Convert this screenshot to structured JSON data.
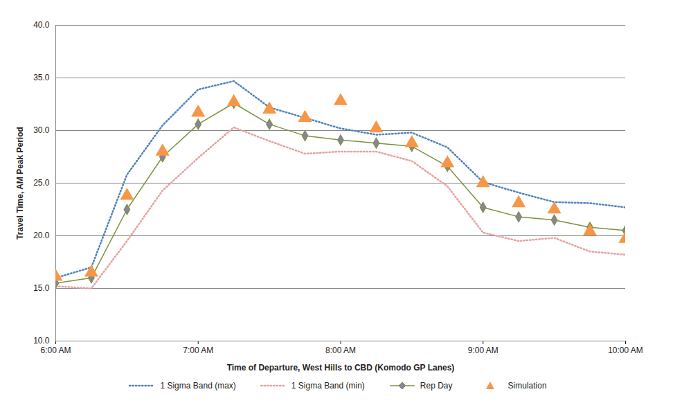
{
  "chart_data": {
    "type": "line",
    "x_label": "Time of Departure, West Hills to CBD (Komodo GP Lanes)",
    "y_label": "Travel Time, AM Peak Period",
    "x": [
      6,
      6.25,
      6.5,
      6.75,
      7,
      7.25,
      7.5,
      7.75,
      8,
      8.25,
      8.5,
      8.75,
      9,
      9.25,
      9.5,
      9.75,
      10
    ],
    "xlim": [
      6,
      10
    ],
    "xticks": [
      {
        "value": 6,
        "label": "6:00 AM"
      },
      {
        "value": 7,
        "label": "7:00 AM"
      },
      {
        "value": 8,
        "label": "8:00 AM"
      },
      {
        "value": 9,
        "label": "9:00 AM"
      },
      {
        "value": 10,
        "label": "10:00 AM"
      }
    ],
    "ylim": [
      10,
      40
    ],
    "yticks": [
      {
        "value": 10,
        "label": "10.0"
      },
      {
        "value": 15,
        "label": "15.0"
      },
      {
        "value": 20,
        "label": "20.0"
      },
      {
        "value": 25,
        "label": "25.0"
      },
      {
        "value": 30,
        "label": "30.0"
      },
      {
        "value": 35,
        "label": "35.0"
      },
      {
        "value": 40,
        "label": "40.0"
      }
    ],
    "grid": true,
    "legend": "bottom",
    "series": [
      {
        "name": "1 Sigma Band (max)",
        "type": "line",
        "color": "#4F81BD",
        "line_style": "dotted",
        "values": [
          16.0,
          17.0,
          25.8,
          30.5,
          33.9,
          34.7,
          32.2,
          31.2,
          30.2,
          29.6,
          29.8,
          28.4,
          25.1,
          24.1,
          23.2,
          23.1,
          22.7
        ]
      },
      {
        "name": "1 Sigma Band (min)",
        "type": "line",
        "color": "#E6A0A0",
        "line_style": "dotted",
        "values": [
          15.2,
          15.0,
          19.5,
          24.3,
          27.4,
          30.3,
          29.0,
          27.8,
          28.0,
          28.0,
          27.1,
          24.7,
          20.3,
          19.5,
          19.8,
          18.5,
          18.2
        ]
      },
      {
        "name": "Rep Day",
        "type": "line",
        "color": "#77933C",
        "line_style": "solid",
        "marker": "diamond",
        "values": [
          15.5,
          16.0,
          22.5,
          27.5,
          30.6,
          32.6,
          30.6,
          29.5,
          29.1,
          28.8,
          28.5,
          26.6,
          22.7,
          21.8,
          21.5,
          20.8,
          20.5
        ]
      },
      {
        "name": "Simulation",
        "type": "scatter",
        "color": "#F79646",
        "marker": "triangle",
        "values": [
          16.1,
          16.5,
          23.8,
          28.0,
          31.7,
          32.7,
          32.0,
          31.2,
          32.8,
          30.2,
          28.8,
          26.9,
          25.0,
          23.1,
          22.5,
          20.4,
          19.7
        ]
      }
    ]
  }
}
